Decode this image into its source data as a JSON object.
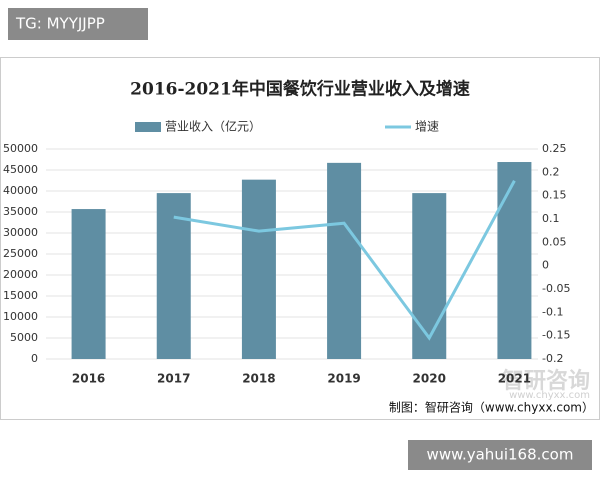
{
  "tag": "TG: MYYJJPP",
  "site": "www.yahui168.com",
  "chart_data": {
    "type": "bar",
    "title": "2016-2021年中国餐饮行业营业收入及增速",
    "categories": [
      "2016",
      "2017",
      "2018",
      "2019",
      "2020",
      "2021"
    ],
    "series": [
      {
        "name": "营业收入（亿元）",
        "type": "bar",
        "color": "#5f8ea3",
        "values": [
          35700,
          39500,
          42700,
          46700,
          39500,
          46900
        ]
      },
      {
        "name": "增速",
        "type": "line",
        "axis": "y2",
        "color": "#7cc8e0",
        "values": [
          null,
          0.104,
          0.074,
          0.091,
          -0.155,
          0.182
        ]
      }
    ],
    "ylim": [
      0,
      50000
    ],
    "yticks": [
      0,
      5000,
      10000,
      15000,
      20000,
      25000,
      30000,
      35000,
      40000,
      45000,
      50000
    ],
    "y2lim": [
      -0.2,
      0.25
    ],
    "y2ticks": [
      -0.2,
      -0.15,
      -0.1,
      -0.05,
      0,
      0.05,
      0.1,
      0.15,
      0.2,
      0.25
    ],
    "grid": true,
    "legend": "top",
    "watermark": "智研咨询",
    "watermark_url": "www.chyxx.com",
    "source": "制图：智研咨询（www.chyxx.com）"
  }
}
